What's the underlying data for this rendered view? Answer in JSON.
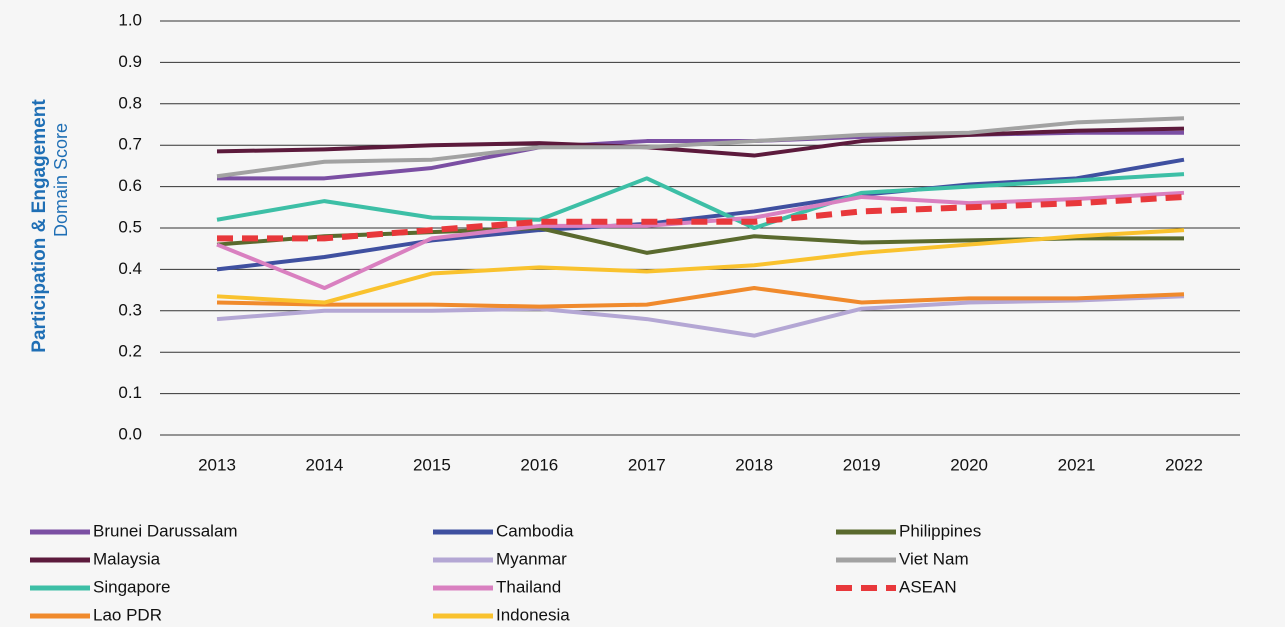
{
  "chart_data": {
    "type": "line",
    "y_label": "Participation & Engagement",
    "y_sublabel": "Domain Score",
    "categories": [
      "2013",
      "2014",
      "2015",
      "2016",
      "2017",
      "2018",
      "2019",
      "2020",
      "2021",
      "2022"
    ],
    "ylim": [
      0,
      1
    ],
    "yticks": [
      {
        "value": 0,
        "label": "0.0"
      },
      0.1,
      0.2,
      0.3,
      0.4,
      0.5,
      0.6,
      0.7,
      0.8,
      0.9,
      {
        "value": 1,
        "label": "1.0"
      }
    ],
    "grid": true,
    "legend": "bottom",
    "series": [
      {
        "name": "Brunei Darussalam",
        "color": "#7b4fa3",
        "values": [
          0.62,
          0.62,
          0.645,
          0.695,
          0.71,
          0.71,
          0.72,
          0.725,
          0.73,
          0.73
        ]
      },
      {
        "name": "Cambodia",
        "color": "#3f50a0",
        "values": [
          0.4,
          0.43,
          0.47,
          0.495,
          0.51,
          0.54,
          0.58,
          0.605,
          0.62,
          0.665
        ]
      },
      {
        "name": "Philippines",
        "color": "#5a6a2e",
        "values": [
          0.46,
          0.48,
          0.49,
          0.5,
          0.44,
          0.48,
          0.465,
          0.47,
          0.475,
          0.475
        ]
      },
      {
        "name": "Malaysia",
        "color": "#5c1a3c",
        "values": [
          0.685,
          0.69,
          0.7,
          0.705,
          0.695,
          0.675,
          0.71,
          0.725,
          0.735,
          0.74
        ]
      },
      {
        "name": "Myanmar",
        "color": "#b4a7d4",
        "values": [
          0.28,
          0.3,
          0.3,
          0.305,
          0.28,
          0.24,
          0.305,
          0.32,
          0.325,
          0.335
        ]
      },
      {
        "name": "Viet Nam",
        "color": "#a2a2a2",
        "values": [
          0.625,
          0.66,
          0.665,
          0.695,
          0.695,
          0.71,
          0.725,
          0.73,
          0.755,
          0.765
        ]
      },
      {
        "name": "Singapore",
        "color": "#3dbfa6",
        "values": [
          0.52,
          0.565,
          0.525,
          0.52,
          0.62,
          0.5,
          0.585,
          0.6,
          0.615,
          0.63
        ]
      },
      {
        "name": "Thailand",
        "color": "#d980c0",
        "values": [
          0.46,
          0.355,
          0.475,
          0.505,
          0.505,
          0.525,
          0.575,
          0.56,
          0.57,
          0.585
        ]
      },
      {
        "name": "ASEAN",
        "color": "#e8383b",
        "style": "dashed",
        "values": [
          0.475,
          0.475,
          0.495,
          0.515,
          0.515,
          0.515,
          0.54,
          0.55,
          0.56,
          0.575
        ]
      },
      {
        "name": "Lao PDR",
        "color": "#f08a2c",
        "values": [
          0.32,
          0.315,
          0.315,
          0.31,
          0.315,
          0.355,
          0.32,
          0.33,
          0.33,
          0.34
        ]
      },
      {
        "name": "Indonesia",
        "color": "#f9c22e",
        "values": [
          0.335,
          0.32,
          0.39,
          0.405,
          0.395,
          0.41,
          0.44,
          0.46,
          0.48,
          0.495
        ]
      }
    ]
  }
}
